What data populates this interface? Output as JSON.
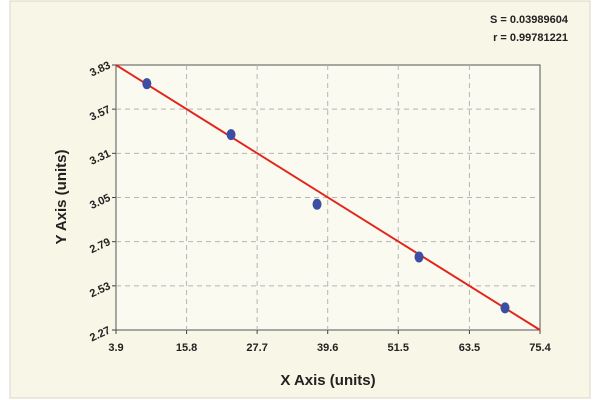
{
  "chart_data": {
    "type": "scatter",
    "x_label": "X Axis (units)",
    "y_label": "Y Axis (units)",
    "annotations": [
      "S = 0.03989604",
      "r = 0.99781221"
    ],
    "xlim": [
      3.9,
      75.4
    ],
    "xticks": [
      3.9,
      15.8,
      27.7,
      39.6,
      51.5,
      63.5,
      75.4
    ],
    "ylim": [
      2.27,
      3.83
    ],
    "yticks": [
      2.27,
      2.53,
      2.79,
      3.05,
      3.31,
      3.57,
      3.83
    ],
    "grid": true,
    "series": [
      {
        "color": "#3b4ea3",
        "x": [
          9.1,
          23.3,
          37.8,
          55.0,
          69.5
        ],
        "values": [
          3.72,
          3.42,
          3.01,
          2.7,
          2.4
        ]
      }
    ],
    "fit": {
      "color": "#e3241c",
      "x": [
        3.9,
        75.4
      ],
      "values": [
        3.83,
        2.27
      ]
    }
  }
}
